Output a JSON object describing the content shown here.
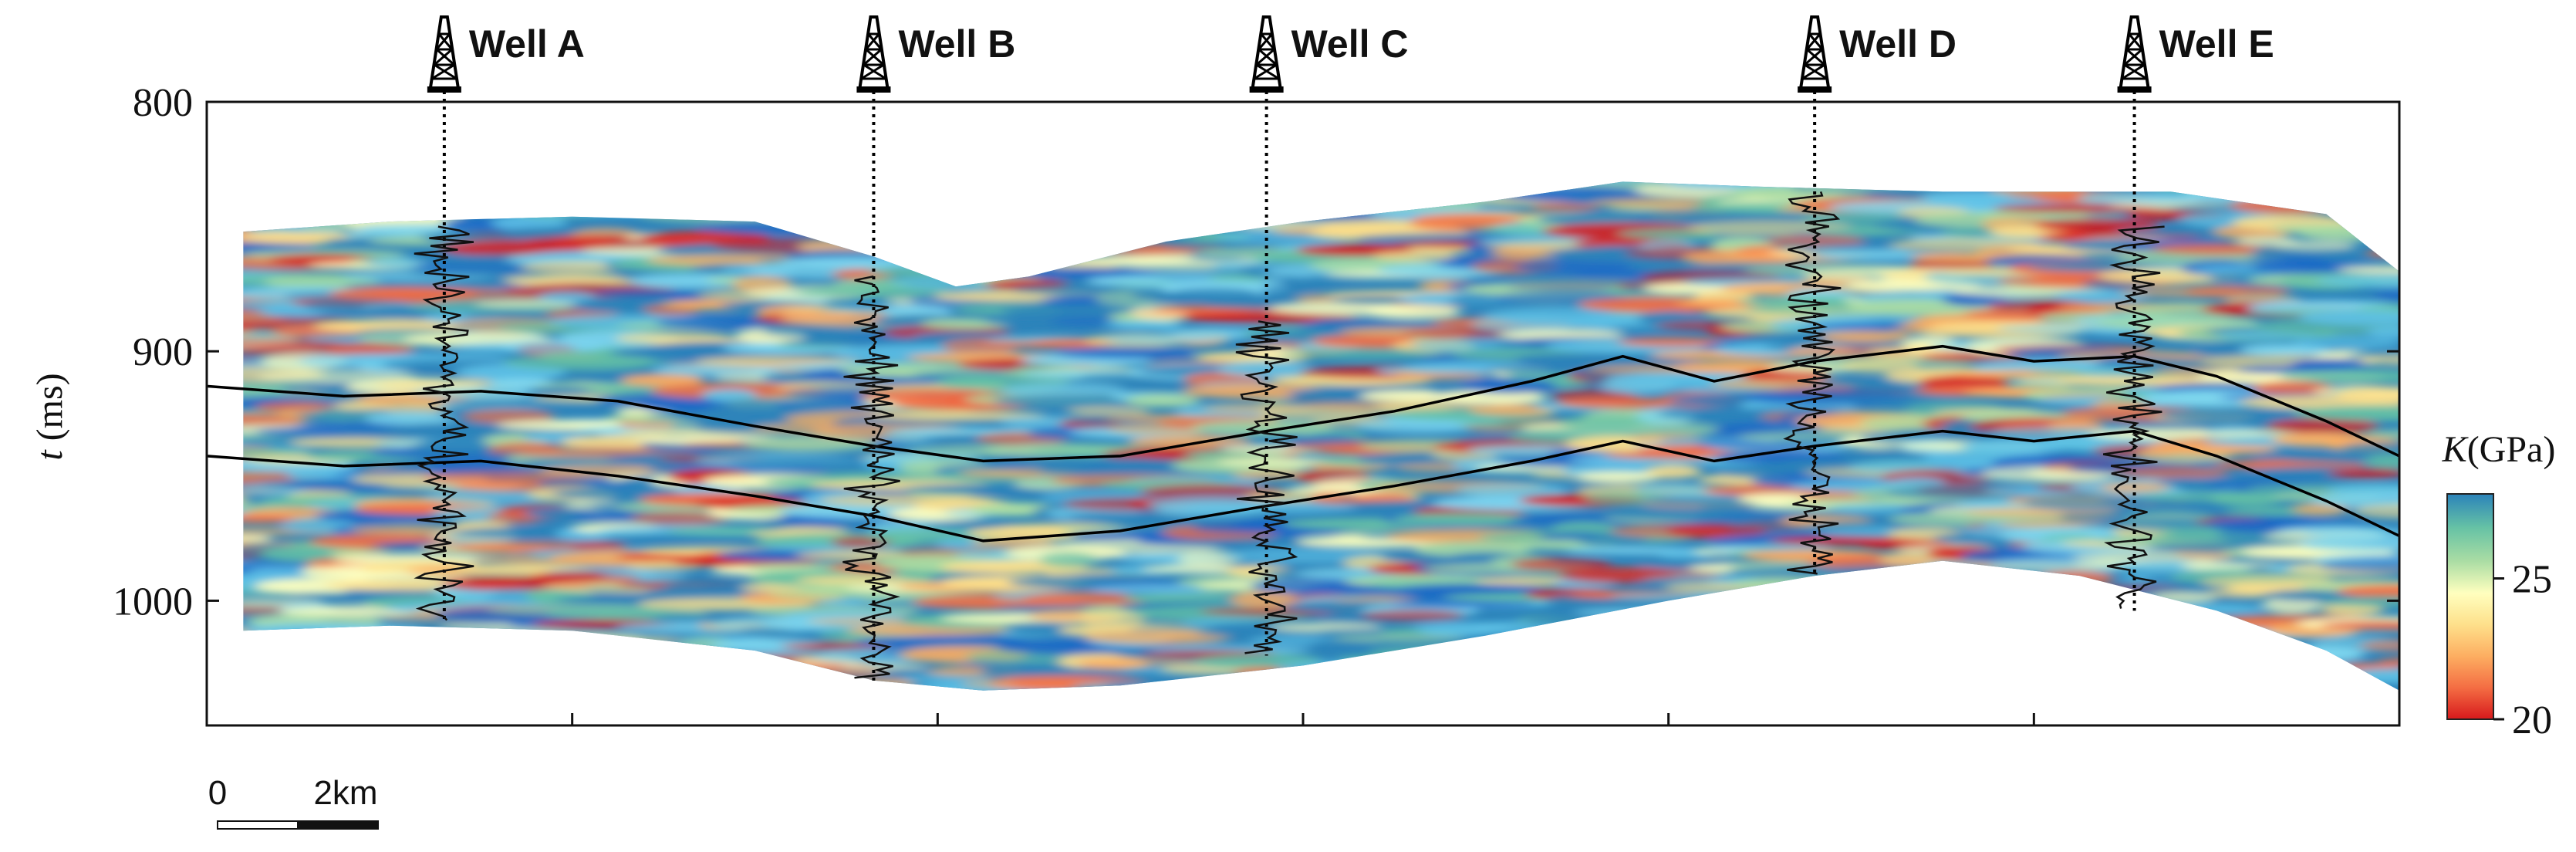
{
  "chart_data": {
    "type": "heatmap",
    "title": "",
    "ylabel_var": "t",
    "ylabel_unit": " (ms)",
    "ylim": [
      800,
      1050
    ],
    "yticks": [
      "800",
      "900",
      "1000"
    ],
    "ytick_values": [
      800,
      900,
      1000
    ],
    "xlim_km": [
      0,
      24
    ],
    "x_grid_ticks_km": [
      4,
      8,
      12,
      16,
      20
    ],
    "colorbar": {
      "label_var": "K",
      "label_unit": "(GPa)",
      "range": [
        20,
        28
      ],
      "ticks": [
        "20",
        "25"
      ],
      "tick_values": [
        20,
        25
      ],
      "colormap": [
        "#d7191c",
        "#f46d43",
        "#fdae61",
        "#fee08b",
        "#ffffbf",
        "#abdda4",
        "#66c2a5",
        "#2b83ba"
      ]
    },
    "scale_bar": {
      "start_label": "0",
      "end_label": "2km",
      "length_km": 2
    },
    "wells": [
      {
        "name": "Well A",
        "x_km": 2.6,
        "t_top": 850,
        "t_bottom": 1008
      },
      {
        "name": "Well B",
        "x_km": 7.3,
        "t_top": 870,
        "t_bottom": 1032
      },
      {
        "name": "Well C",
        "x_km": 11.6,
        "t_top": 888,
        "t_bottom": 1022
      },
      {
        "name": "Well D",
        "x_km": 17.6,
        "t_top": 836,
        "t_bottom": 990
      },
      {
        "name": "Well E",
        "x_km": 21.1,
        "t_top": 850,
        "t_bottom": 1004
      }
    ],
    "section_top_t": [
      [
        0.4,
        852
      ],
      [
        2.0,
        848
      ],
      [
        4.0,
        846
      ],
      [
        6.0,
        848
      ],
      [
        7.3,
        862
      ],
      [
        8.2,
        874
      ],
      [
        9.0,
        870
      ],
      [
        10.5,
        856
      ],
      [
        12.0,
        848
      ],
      [
        14.0,
        840
      ],
      [
        15.5,
        832
      ],
      [
        17.0,
        834
      ],
      [
        19.0,
        836
      ],
      [
        21.5,
        836
      ],
      [
        23.2,
        845
      ],
      [
        24.0,
        868
      ]
    ],
    "section_bottom_t": [
      [
        0.4,
        1012
      ],
      [
        2.0,
        1010
      ],
      [
        4.0,
        1012
      ],
      [
        6.0,
        1020
      ],
      [
        7.3,
        1032
      ],
      [
        8.5,
        1036
      ],
      [
        10.0,
        1034
      ],
      [
        12.0,
        1026
      ],
      [
        14.0,
        1014
      ],
      [
        16.0,
        1000
      ],
      [
        17.6,
        990
      ],
      [
        19.0,
        984
      ],
      [
        20.5,
        990
      ],
      [
        22.0,
        1004
      ],
      [
        23.2,
        1020
      ],
      [
        24.0,
        1036
      ]
    ],
    "horizons": [
      {
        "points": [
          [
            0,
            914
          ],
          [
            1.5,
            918
          ],
          [
            3.0,
            916
          ],
          [
            4.5,
            920
          ],
          [
            6.0,
            930
          ],
          [
            7.3,
            938
          ],
          [
            8.5,
            944
          ],
          [
            10.0,
            942
          ],
          [
            11.6,
            932
          ],
          [
            13.0,
            924
          ],
          [
            14.5,
            912
          ],
          [
            15.5,
            902
          ],
          [
            16.5,
            912
          ],
          [
            17.6,
            904
          ],
          [
            19.0,
            898
          ],
          [
            20.0,
            904
          ],
          [
            21.1,
            902
          ],
          [
            22.0,
            910
          ],
          [
            23.2,
            928
          ],
          [
            24.0,
            942
          ]
        ]
      },
      {
        "points": [
          [
            0,
            942
          ],
          [
            1.5,
            946
          ],
          [
            3.0,
            944
          ],
          [
            4.5,
            950
          ],
          [
            6.0,
            958
          ],
          [
            7.3,
            966
          ],
          [
            8.5,
            976
          ],
          [
            10.0,
            972
          ],
          [
            11.6,
            962
          ],
          [
            13.0,
            954
          ],
          [
            14.5,
            944
          ],
          [
            15.5,
            936
          ],
          [
            16.5,
            944
          ],
          [
            17.6,
            938
          ],
          [
            19.0,
            932
          ],
          [
            20.0,
            936
          ],
          [
            21.1,
            932
          ],
          [
            22.0,
            942
          ],
          [
            23.2,
            960
          ],
          [
            24.0,
            974
          ]
        ]
      }
    ],
    "grid": false,
    "legend": "colorbar at right"
  }
}
